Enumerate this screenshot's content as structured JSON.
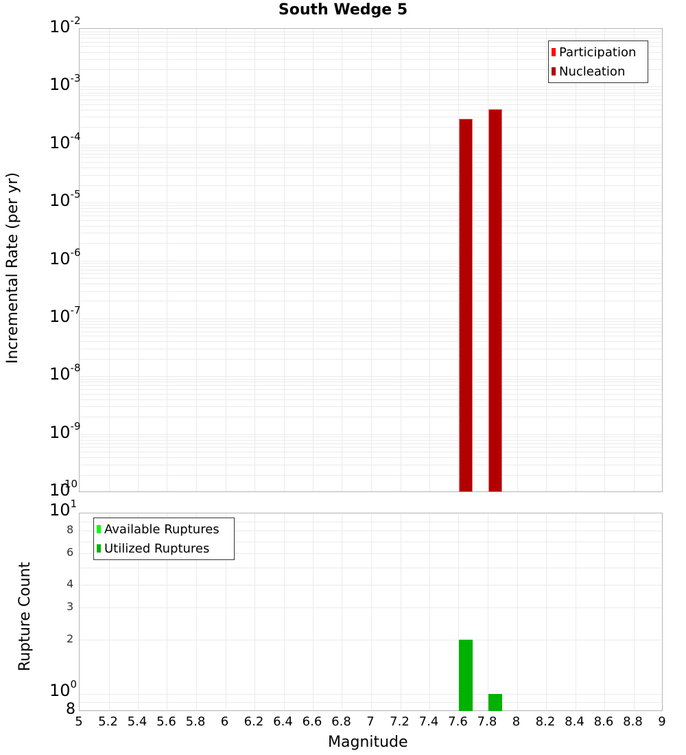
{
  "title": "South Wedge 5",
  "top_panel": {
    "ylabel": "Incremental Rate (per yr)",
    "y_ticks": [
      {
        "base": "10",
        "exp": "-2"
      },
      {
        "base": "10",
        "exp": "-3"
      },
      {
        "base": "10",
        "exp": "-4"
      },
      {
        "base": "10",
        "exp": "-5"
      },
      {
        "base": "10",
        "exp": "-6"
      },
      {
        "base": "10",
        "exp": "-7"
      },
      {
        "base": "10",
        "exp": "-8"
      },
      {
        "base": "10",
        "exp": "-9"
      },
      {
        "base": "10",
        "exp": "-10"
      }
    ],
    "legend": [
      {
        "label": "Participation",
        "color": "#ff0000"
      },
      {
        "label": "Nucleation",
        "color": "#b20000"
      }
    ]
  },
  "bottom_panel": {
    "ylabel": "Rupture Count",
    "y_ticks_major": [
      {
        "base": "10",
        "exp": "1"
      },
      {
        "base": "10",
        "exp": "0"
      }
    ],
    "y_ticks_minor": [
      "8",
      "6",
      "4",
      "3",
      "2"
    ],
    "y_bottom_tick": "8",
    "legend": [
      {
        "label": "Available Ruptures",
        "color": "#00ff00"
      },
      {
        "label": "Utilized Ruptures",
        "color": "#00b200"
      }
    ]
  },
  "xlabel": "Magnitude",
  "x_ticks": [
    "5",
    "5.2",
    "5.4",
    "5.6",
    "5.8",
    "6",
    "6.2",
    "6.4",
    "6.6",
    "6.8",
    "7",
    "7.2",
    "7.4",
    "7.6",
    "7.8",
    "8",
    "8.2",
    "8.4",
    "8.6",
    "8.8",
    "9"
  ],
  "chart_data": [
    {
      "type": "bar",
      "title": "South Wedge 5",
      "xlabel": "Magnitude",
      "ylabel": "Incremental Rate (per yr)",
      "yscale": "log",
      "xlim": [
        5,
        9
      ],
      "ylim": [
        1e-10,
        0.01
      ],
      "grid": true,
      "legend_position": "top-right",
      "x": [
        7.65,
        7.85
      ],
      "series": [
        {
          "name": "Participation",
          "color": "#ff0000",
          "values": [
            0.00028,
            0.00041
          ]
        },
        {
          "name": "Nucleation",
          "color": "#b20000",
          "values": [
            0.00028,
            0.00041
          ]
        }
      ]
    },
    {
      "type": "bar",
      "xlabel": "Magnitude",
      "ylabel": "Rupture Count",
      "yscale": "log",
      "xlim": [
        5,
        9
      ],
      "ylim": [
        0.8,
        10
      ],
      "grid": true,
      "legend_position": "top-left",
      "x": [
        7.65,
        7.85
      ],
      "series": [
        {
          "name": "Available Ruptures",
          "color": "#00ff00",
          "values": [
            2,
            1
          ]
        },
        {
          "name": "Utilized Ruptures",
          "color": "#00b200",
          "values": [
            2,
            1
          ]
        }
      ]
    }
  ]
}
